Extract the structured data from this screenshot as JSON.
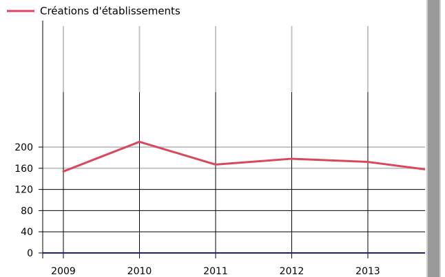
{
  "chart_data": {
    "type": "line",
    "x": [
      "2009",
      "2010",
      "2011",
      "2012",
      "2013"
    ],
    "series": [
      {
        "name": "Créations d'établissements",
        "color": "#d9475f",
        "values": [
          154,
          210,
          167,
          178,
          172
        ]
      }
    ],
    "trailing_value": 158,
    "ylim": [
      0,
      220
    ],
    "yticks": [
      0,
      40,
      80,
      120,
      160,
      200
    ],
    "legend_position": "top-left",
    "grid": true,
    "title": "",
    "xlabel": "",
    "ylabel": ""
  }
}
